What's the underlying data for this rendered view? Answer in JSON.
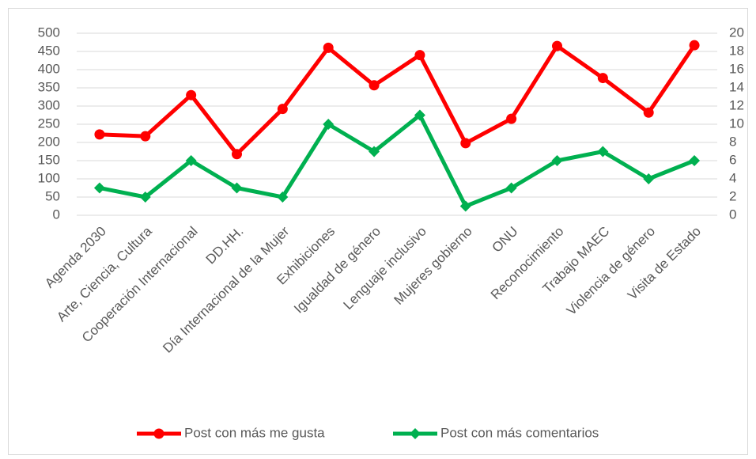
{
  "chart_data": {
    "type": "line",
    "categories": [
      "Agenda 2030",
      "Arte, Ciencia, Cultura",
      "Cooperación Internacional",
      "DD.HH.",
      "Día Internacional de la Mujer",
      "Exhibiciones",
      "Igualdad de género",
      "Lenguaje inclusivo",
      "Mujeres gobierno",
      "ONU",
      "Reconocimiento",
      "Trabajo MAEC",
      "Violencia de género",
      "Visita de Estado"
    ],
    "series": [
      {
        "name": "Post con más me gusta",
        "color": "#ff0000",
        "marker": "circle",
        "values": [
          222,
          217,
          330,
          168,
          292,
          460,
          357,
          440,
          198,
          265,
          465,
          377,
          282,
          467
        ]
      },
      {
        "name": "Post con más comentarios",
        "color": "#00b050",
        "marker": "diamond",
        "axis": "y2",
        "values": [
          3,
          2,
          6,
          3,
          2,
          10,
          7,
          11,
          1,
          3,
          6,
          7,
          4,
          6
        ]
      }
    ],
    "ylim": [
      0,
      500
    ],
    "yticks": [
      0,
      50,
      100,
      150,
      200,
      250,
      300,
      350,
      400,
      450,
      500
    ],
    "y2lim": [
      0,
      20
    ],
    "y2ticks": [
      0,
      2,
      4,
      6,
      8,
      10,
      12,
      14,
      16,
      18,
      20
    ],
    "grid": true,
    "legend": "bottom"
  }
}
